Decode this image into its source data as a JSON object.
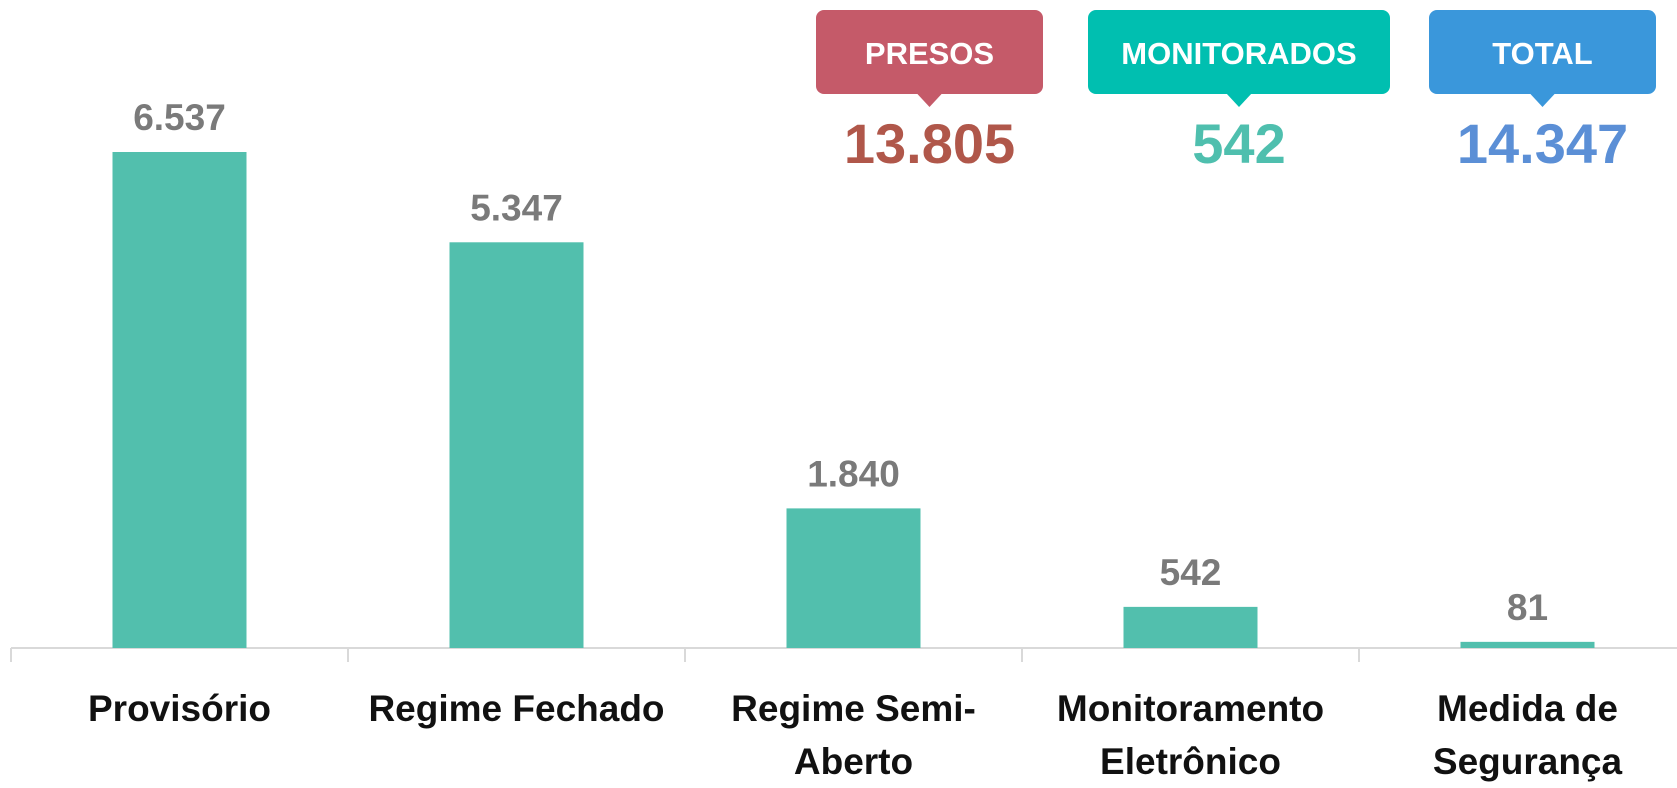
{
  "chart_data": {
    "type": "bar",
    "categories": [
      "Provisório",
      "Regime Fechado",
      "Regime Semi-Aberto",
      "Monitoramento Eletrônico",
      "Medida de Segurança"
    ],
    "values": [
      6537,
      5347,
      1840,
      542,
      81
    ],
    "value_labels": [
      "6.537",
      "5.347",
      "1.840",
      "542",
      "81"
    ],
    "color": "#52bfad",
    "summary": [
      {
        "label": "PRESOS",
        "value": "13.805",
        "badge_color": "#c55a69",
        "value_color": "#b0574a"
      },
      {
        "label": "MONITORADOS",
        "value": "542",
        "badge_color": "#00bfb0",
        "value_color": "#4fbfae"
      },
      {
        "label": "TOTAL",
        "value": "14.347",
        "badge_color": "#3a97db",
        "value_color": "#5b8fd6"
      }
    ]
  }
}
